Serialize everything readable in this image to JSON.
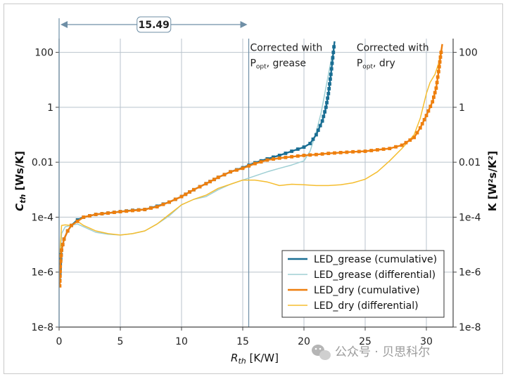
{
  "chart_data": {
    "type": "line",
    "title": "",
    "xlabel": "R",
    "xlabel_sub": "th",
    "xlabel_unit": " [K/W]",
    "ylabel": "C",
    "ylabel_sub": "th",
    "ylabel_unit": " [Ws/K]",
    "y2label": "K [W²s/K²]",
    "xlim": [
      0,
      32
    ],
    "ylim_log10": [
      -8,
      2.5
    ],
    "x_ticks": [
      0,
      5,
      10,
      15,
      20,
      25,
      30
    ],
    "y_ticks": [
      {
        "exp": 2,
        "label": "100"
      },
      {
        "exp": 0,
        "label": "1"
      },
      {
        "exp": -2,
        "label": "0.01"
      },
      {
        "exp": -4,
        "label": "1e-4"
      },
      {
        "exp": -6,
        "label": "1e-6"
      },
      {
        "exp": -8,
        "label": "1e-8"
      }
    ],
    "y2_ticks": [
      {
        "exp": 2,
        "label": "100"
      },
      {
        "exp": 0,
        "label": "1"
      },
      {
        "exp": -2,
        "label": "0.01"
      },
      {
        "exp": -4,
        "label": "1e-4"
      },
      {
        "exp": -6,
        "label": "1e-6"
      },
      {
        "exp": -8,
        "label": "1e-8"
      }
    ],
    "vlines": [
      15.49
    ],
    "dimension": {
      "from": 0,
      "to": 15.49,
      "label": "15.49"
    },
    "annotations": [
      {
        "x": 15.6,
        "log_y": 1.9,
        "line1": "Corrected with",
        "p": "P",
        "p_sub": "opt",
        "rest": ", grease"
      },
      {
        "x": 24.3,
        "log_y": 1.9,
        "line1": "Corrected with",
        "p": "P",
        "p_sub": "opt",
        "rest": ", dry"
      }
    ],
    "legend": {
      "position": "bottom-right"
    },
    "series": [
      {
        "name": "LED_grease (cumulative)",
        "color": "#1a6e93",
        "marker": true,
        "points": [
          [
            0.05,
            -6.3
          ],
          [
            0.1,
            -5.7
          ],
          [
            0.2,
            -5.2
          ],
          [
            0.4,
            -4.8
          ],
          [
            0.7,
            -4.5
          ],
          [
            1.0,
            -4.3
          ],
          [
            1.5,
            -4.1
          ],
          [
            2,
            -4.0
          ],
          [
            3,
            -3.9
          ],
          [
            4,
            -3.85
          ],
          [
            5,
            -3.8
          ],
          [
            6,
            -3.75
          ],
          [
            7,
            -3.72
          ],
          [
            8,
            -3.6
          ],
          [
            9,
            -3.45
          ],
          [
            10,
            -3.25
          ],
          [
            11,
            -3.0
          ],
          [
            12,
            -2.78
          ],
          [
            13,
            -2.55
          ],
          [
            14,
            -2.35
          ],
          [
            15,
            -2.2
          ],
          [
            16,
            -2.02
          ],
          [
            17,
            -1.88
          ],
          [
            18,
            -1.75
          ],
          [
            19,
            -1.6
          ],
          [
            20,
            -1.45
          ],
          [
            20.5,
            -1.32
          ],
          [
            21,
            -1.0
          ],
          [
            21.5,
            -0.5
          ],
          [
            21.8,
            0.0
          ],
          [
            22.0,
            0.5
          ],
          [
            22.2,
            1.2
          ],
          [
            22.4,
            2.0
          ],
          [
            22.5,
            2.4
          ]
        ]
      },
      {
        "name": "LED_grease (differential)",
        "color": "#9fcfd4",
        "marker": false,
        "points": [
          [
            0.05,
            -5.8
          ],
          [
            0.2,
            -4.6
          ],
          [
            0.5,
            -4.35
          ],
          [
            1.0,
            -4.3
          ],
          [
            1.5,
            -4.25
          ],
          [
            2,
            -4.35
          ],
          [
            3,
            -4.55
          ],
          [
            4,
            -4.62
          ],
          [
            5,
            -4.65
          ],
          [
            6,
            -4.6
          ],
          [
            7,
            -4.5
          ],
          [
            8,
            -4.25
          ],
          [
            9,
            -3.95
          ],
          [
            10,
            -3.55
          ],
          [
            11,
            -3.35
          ],
          [
            12,
            -3.25
          ],
          [
            13,
            -3.0
          ],
          [
            14,
            -2.8
          ],
          [
            15,
            -2.65
          ],
          [
            16,
            -2.5
          ],
          [
            17,
            -2.35
          ],
          [
            18,
            -2.22
          ],
          [
            19,
            -2.1
          ],
          [
            20,
            -1.95
          ],
          [
            20.5,
            -1.6
          ],
          [
            21,
            -0.9
          ],
          [
            21.4,
            -0.2
          ],
          [
            21.7,
            0.5
          ],
          [
            22.0,
            1.2
          ],
          [
            22.3,
            1.9
          ]
        ]
      },
      {
        "name": "LED_dry (cumulative)",
        "color": "#ee7f0e",
        "marker": true,
        "points": [
          [
            0.05,
            -6.5
          ],
          [
            0.1,
            -5.8
          ],
          [
            0.2,
            -5.2
          ],
          [
            0.4,
            -4.8
          ],
          [
            0.7,
            -4.5
          ],
          [
            1.0,
            -4.3
          ],
          [
            1.5,
            -4.15
          ],
          [
            2,
            -4.0
          ],
          [
            3,
            -3.9
          ],
          [
            4,
            -3.85
          ],
          [
            5,
            -3.8
          ],
          [
            6,
            -3.76
          ],
          [
            7,
            -3.72
          ],
          [
            8,
            -3.62
          ],
          [
            9,
            -3.45
          ],
          [
            10,
            -3.25
          ],
          [
            11,
            -3.0
          ],
          [
            12,
            -2.78
          ],
          [
            13,
            -2.55
          ],
          [
            14,
            -2.35
          ],
          [
            15,
            -2.22
          ],
          [
            16,
            -2.05
          ],
          [
            17,
            -1.92
          ],
          [
            18,
            -1.85
          ],
          [
            19,
            -1.8
          ],
          [
            20,
            -1.75
          ],
          [
            21,
            -1.72
          ],
          [
            22,
            -1.68
          ],
          [
            23,
            -1.65
          ],
          [
            24,
            -1.62
          ],
          [
            25,
            -1.6
          ],
          [
            26,
            -1.55
          ],
          [
            27,
            -1.5
          ],
          [
            28,
            -1.38
          ],
          [
            29,
            -1.1
          ],
          [
            29.5,
            -0.75
          ],
          [
            30,
            -0.3
          ],
          [
            30.5,
            0.2
          ],
          [
            30.8,
            0.7
          ],
          [
            31.0,
            1.3
          ],
          [
            31.2,
            2.0
          ],
          [
            31.3,
            2.3
          ]
        ]
      },
      {
        "name": "LED_dry (differential)",
        "color": "#f5bd2f",
        "marker": false,
        "points": [
          [
            0.05,
            -5.5
          ],
          [
            0.2,
            -4.3
          ],
          [
            0.5,
            -4.28
          ],
          [
            1.0,
            -4.3
          ],
          [
            1.5,
            -4.15
          ],
          [
            2,
            -4.3
          ],
          [
            3,
            -4.5
          ],
          [
            4,
            -4.6
          ],
          [
            5,
            -4.65
          ],
          [
            6,
            -4.6
          ],
          [
            7,
            -4.5
          ],
          [
            8,
            -4.25
          ],
          [
            9,
            -3.9
          ],
          [
            10,
            -3.55
          ],
          [
            11,
            -3.35
          ],
          [
            12,
            -3.2
          ],
          [
            13,
            -2.95
          ],
          [
            14,
            -2.8
          ],
          [
            15,
            -2.65
          ],
          [
            16,
            -2.65
          ],
          [
            17,
            -2.72
          ],
          [
            18,
            -2.85
          ],
          [
            19,
            -2.8
          ],
          [
            20,
            -2.82
          ],
          [
            21,
            -2.85
          ],
          [
            22,
            -2.85
          ],
          [
            23,
            -2.82
          ],
          [
            24,
            -2.75
          ],
          [
            25,
            -2.62
          ],
          [
            26,
            -2.35
          ],
          [
            27,
            -1.95
          ],
          [
            28,
            -1.5
          ],
          [
            29,
            -1.0
          ],
          [
            29.5,
            -0.4
          ],
          [
            30,
            0.5
          ],
          [
            30.3,
            0.9
          ],
          [
            30.7,
            1.2
          ],
          [
            31.0,
            1.6
          ],
          [
            31.2,
            2.1
          ]
        ]
      }
    ]
  },
  "watermark": "公众号 · 贝思科尔"
}
